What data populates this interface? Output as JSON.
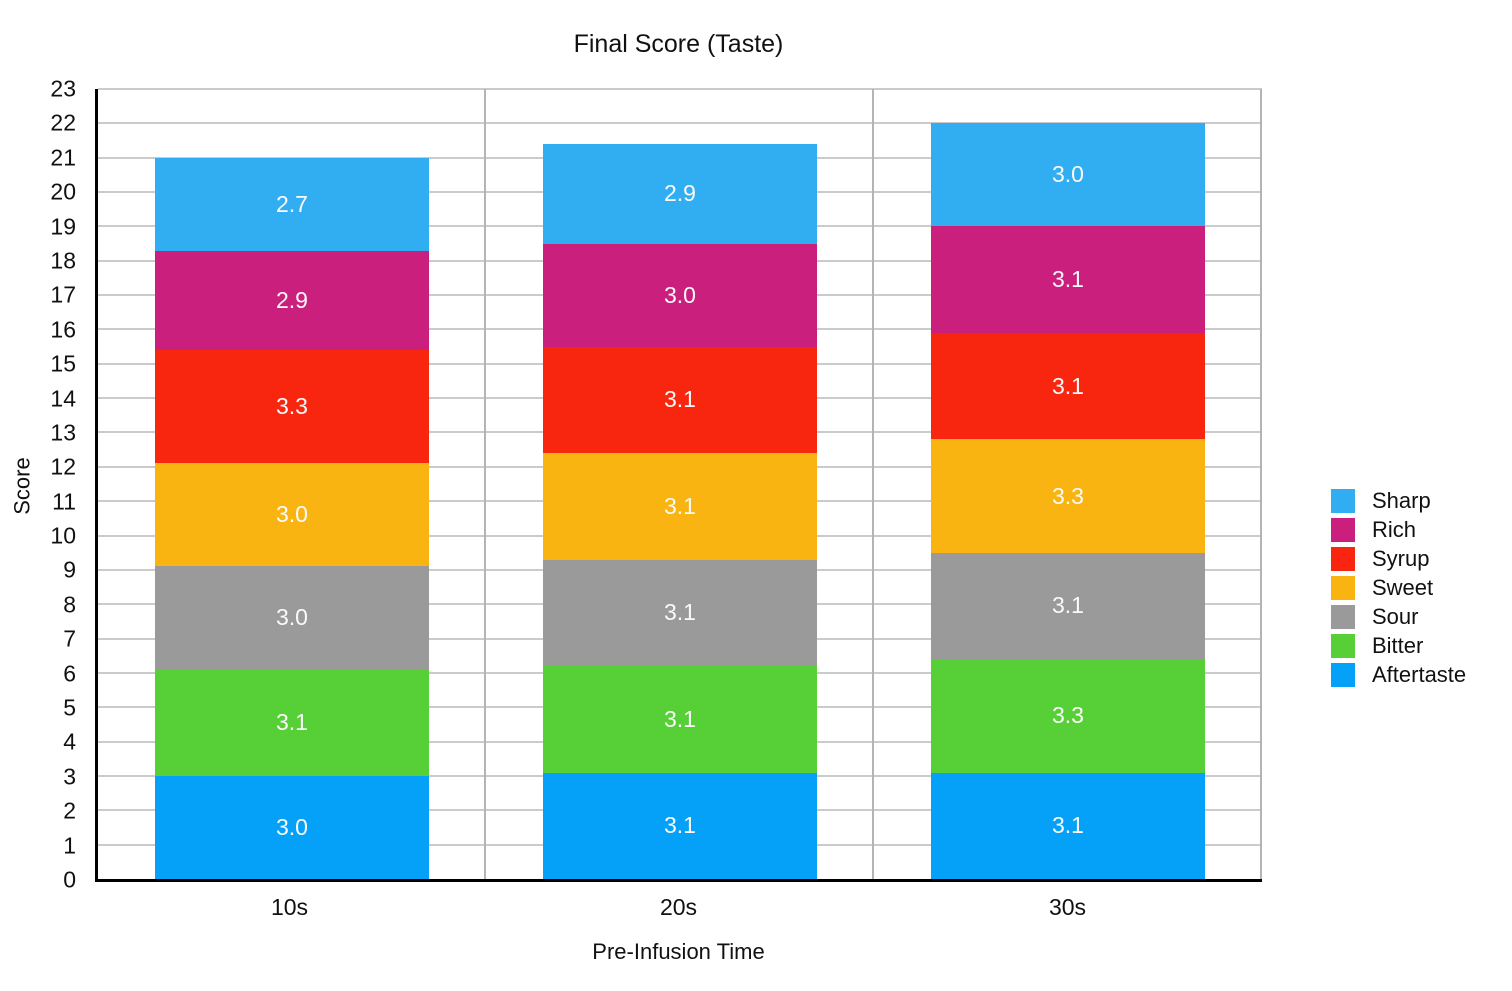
{
  "chart_data": {
    "type": "bar",
    "stacked": true,
    "title": "Final Score (Taste)",
    "xlabel": "Pre-Infusion Time",
    "ylabel": "Score",
    "categories": [
      "10s",
      "20s",
      "30s"
    ],
    "series": [
      {
        "name": "Aftertaste",
        "color": "#05A1F8",
        "values": [
          3.0,
          3.1,
          3.1
        ]
      },
      {
        "name": "Bitter",
        "color": "#57D038",
        "values": [
          3.1,
          3.1,
          3.3
        ]
      },
      {
        "name": "Sour",
        "color": "#9A9A9A",
        "values": [
          3.0,
          3.1,
          3.1
        ]
      },
      {
        "name": "Sweet",
        "color": "#F9B411",
        "values": [
          3.0,
          3.1,
          3.3
        ]
      },
      {
        "name": "Syrup",
        "color": "#F9260F",
        "values": [
          3.3,
          3.1,
          3.1
        ]
      },
      {
        "name": "Rich",
        "color": "#CA1F7D",
        "values": [
          2.9,
          3.0,
          3.1
        ]
      },
      {
        "name": "Sharp",
        "color": "#31ADF2",
        "values": [
          2.7,
          2.9,
          3.0
        ]
      }
    ],
    "totals": [
      21.0,
      21.5,
      22.0
    ],
    "legend_position": "right",
    "legend_order_top_to_bottom": [
      "Sharp",
      "Rich",
      "Syrup",
      "Sweet",
      "Sour",
      "Bitter",
      "Aftertaste"
    ],
    "ylim": [
      0,
      23
    ],
    "ytick_step": 1,
    "grid": true,
    "value_label_decimals": 1,
    "colors": {
      "axis": "#000000",
      "grid_horizontal": "#CBCBCB",
      "grid_vertical": "#B4B4B4",
      "value_label_text": "#FAFAFA",
      "text": "#111111",
      "background": "#FFFFFF"
    }
  }
}
